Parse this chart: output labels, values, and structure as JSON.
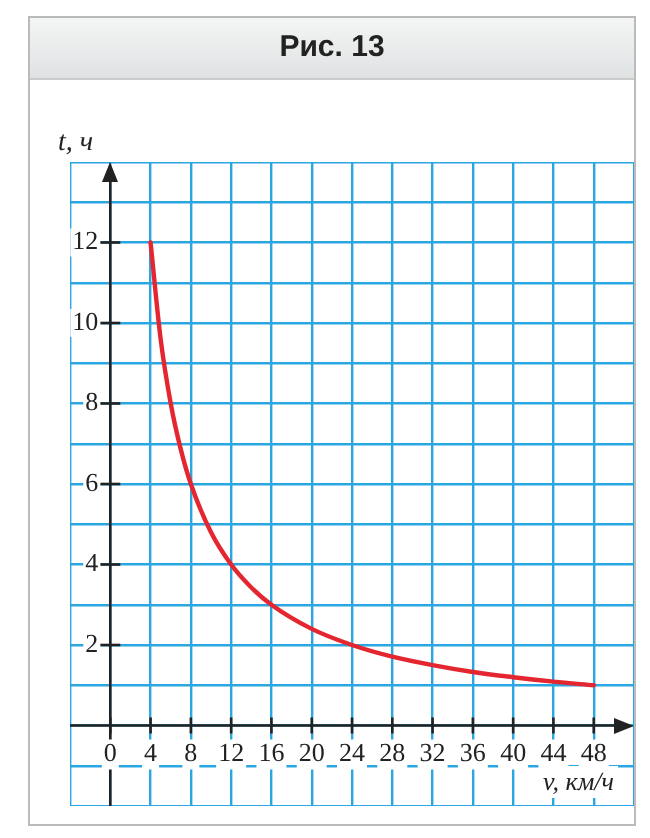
{
  "chart_data": {
    "type": "line",
    "title": "Рис. 13",
    "xlabel": "v, км/ч",
    "ylabel": "t, ч",
    "series": [
      {
        "color": "#e3262f",
        "x": [
          4,
          5,
          6,
          7,
          8,
          10,
          12,
          14,
          16,
          20,
          24,
          28,
          32,
          36,
          40,
          44,
          48
        ],
        "values": [
          12,
          9.6,
          8,
          6.86,
          6,
          4.8,
          4,
          3.43,
          3,
          2.4,
          2,
          1.71,
          1.5,
          1.33,
          1.2,
          1.09,
          1
        ]
      }
    ],
    "xlim": [
      -4,
      52
    ],
    "ylim": [
      -2,
      14
    ],
    "xticks": [
      {
        "value": -4,
        "label": null
      },
      0,
      4,
      8,
      12,
      16,
      20,
      24,
      28,
      32,
      36,
      40,
      44,
      48,
      {
        "value": 52,
        "label": null
      }
    ],
    "yticks": [
      {
        "value": -2,
        "label": null
      },
      {
        "value": -1,
        "label": null
      },
      {
        "value": 0,
        "label": null
      },
      {
        "value": 1,
        "label": null
      },
      2,
      {
        "value": 3,
        "label": null
      },
      4,
      {
        "value": 5,
        "label": null
      },
      6,
      {
        "value": 7,
        "label": null
      },
      8,
      {
        "value": 9,
        "label": null
      },
      10,
      {
        "value": 11,
        "label": null
      },
      12,
      {
        "value": 13,
        "label": null
      },
      {
        "value": 14,
        "label": null
      }
    ],
    "grid": true,
    "marker": "none",
    "line_style": "solid",
    "legend": false
  }
}
